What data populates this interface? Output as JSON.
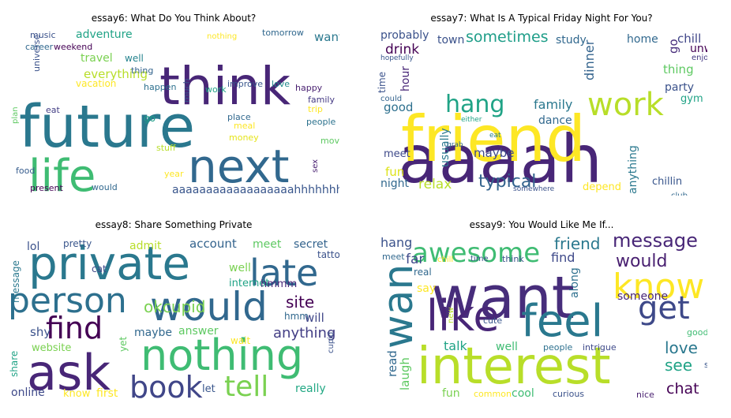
{
  "panels": [
    {
      "title": "essay6: What Do You Think About?",
      "words": [
        {
          "t": "future",
          "c": "#2a788e"
        },
        {
          "t": "think",
          "c": "#482677"
        },
        {
          "t": "next",
          "c": "#31688e"
        },
        {
          "t": "life",
          "c": "#3fbc73"
        },
        {
          "t": "aaaaaaaaaaaaaaaaaahhhhhhhhh",
          "c": "#39568c"
        },
        {
          "t": "everything",
          "c": "#b8de29"
        },
        {
          "t": "travel",
          "c": "#7ad151"
        },
        {
          "t": "adventure",
          "c": "#20a386"
        },
        {
          "t": "want",
          "c": "#2a788e"
        },
        {
          "t": "music",
          "c": "#3b528b"
        },
        {
          "t": "career",
          "c": "#31688e"
        },
        {
          "t": "weekend",
          "c": "#440154"
        },
        {
          "t": "universe",
          "c": "#3b528b"
        },
        {
          "t": "well",
          "c": "#25838e"
        },
        {
          "t": "vacation",
          "c": "#fde725"
        },
        {
          "t": "thing",
          "c": "#33638d"
        },
        {
          "t": "happen",
          "c": "#2d708e"
        },
        {
          "t": "much",
          "c": "#3b528b"
        },
        {
          "t": "work",
          "c": "#20a386"
        },
        {
          "t": "improve",
          "c": "#39568c"
        },
        {
          "t": "love",
          "c": "#238a8d"
        },
        {
          "t": "happy",
          "c": "#481f70"
        },
        {
          "t": "family",
          "c": "#443983"
        },
        {
          "t": "trip",
          "c": "#fde725"
        },
        {
          "t": "people",
          "c": "#2c728e"
        },
        {
          "t": "eat",
          "c": "#433e85"
        },
        {
          "t": "plan",
          "c": "#5ec962"
        },
        {
          "t": "go",
          "c": "#1f9e89"
        },
        {
          "t": "place",
          "c": "#31688e"
        },
        {
          "t": "meal",
          "c": "#fde725"
        },
        {
          "t": "money",
          "c": "#e5e419"
        },
        {
          "t": "move",
          "c": "#5ec962"
        },
        {
          "t": "stuff",
          "c": "#b8de29"
        },
        {
          "t": "year",
          "c": "#fde725"
        },
        {
          "t": "food",
          "c": "#365c8d"
        },
        {
          "t": "present",
          "c": "#440154"
        },
        {
          "t": "would",
          "c": "#31688e"
        },
        {
          "t": "sex",
          "c": "#481f70"
        },
        {
          "t": "nothing",
          "c": "#fde725"
        },
        {
          "t": "tomorrow",
          "c": "#31688e"
        }
      ]
    },
    {
      "title": "essay7: What Is A Typical Friday Night For You?",
      "words": [
        {
          "t": "aaaah",
          "c": "#482677"
        },
        {
          "t": "friend",
          "c": "#fde725"
        },
        {
          "t": "work",
          "c": "#b8de29"
        },
        {
          "t": "hang",
          "c": "#20a386"
        },
        {
          "t": "sometimes",
          "c": "#1f9e89"
        },
        {
          "t": "family",
          "c": "#2a788e"
        },
        {
          "t": "typical",
          "c": "#33638d"
        },
        {
          "t": "relax",
          "c": "#b8de29"
        },
        {
          "t": "probably",
          "c": "#3b528b"
        },
        {
          "t": "drink",
          "c": "#440154"
        },
        {
          "t": "good",
          "c": "#2d708e"
        },
        {
          "t": "town",
          "c": "#3b528b"
        },
        {
          "t": "study",
          "c": "#31688e"
        },
        {
          "t": "home",
          "c": "#31688e"
        },
        {
          "t": "chill",
          "c": "#404688"
        },
        {
          "t": "go",
          "c": "#472d7b"
        },
        {
          "t": "unwind",
          "c": "#440154"
        },
        {
          "t": "enjoy",
          "c": "#443983"
        },
        {
          "t": "thing",
          "c": "#5ec962"
        },
        {
          "t": "party",
          "c": "#3b528b"
        },
        {
          "t": "gym",
          "c": "#20a386"
        },
        {
          "t": "dinner",
          "c": "#33638d"
        },
        {
          "t": "hour",
          "c": "#482677"
        },
        {
          "t": "time",
          "c": "#3b528b"
        },
        {
          "t": "hopefully",
          "c": "#39568c"
        },
        {
          "t": "could",
          "c": "#33638d"
        },
        {
          "t": "dance",
          "c": "#31688e"
        },
        {
          "t": "maybe",
          "c": "#3e4989"
        },
        {
          "t": "meet",
          "c": "#3e4989"
        },
        {
          "t": "usually",
          "c": "#2a788e"
        },
        {
          "t": "either",
          "c": "#20a386"
        },
        {
          "t": "eat",
          "c": "#277f8e"
        },
        {
          "t": "grab",
          "c": "#31688e"
        },
        {
          "t": "fun",
          "c": "#dde318"
        },
        {
          "t": "night",
          "c": "#31688e"
        },
        {
          "t": "anything",
          "c": "#2a788e"
        },
        {
          "t": "depend",
          "c": "#fde725"
        },
        {
          "t": "chillin",
          "c": "#39568c"
        },
        {
          "t": "club",
          "c": "#31688e"
        },
        {
          "t": "somewhere",
          "c": "#3b528b"
        }
      ]
    },
    {
      "title": "essay8: Share Something Private",
      "words": [
        {
          "t": "private",
          "c": "#2a788e"
        },
        {
          "t": "nothing",
          "c": "#3fbc73"
        },
        {
          "t": "ask",
          "c": "#482677"
        },
        {
          "t": "would",
          "c": "#31688e"
        },
        {
          "t": "person",
          "c": "#2d708e"
        },
        {
          "t": "late",
          "c": "#31688e"
        },
        {
          "t": "find",
          "c": "#440154"
        },
        {
          "t": "book",
          "c": "#404688"
        },
        {
          "t": "tell",
          "c": "#7ad151"
        },
        {
          "t": "okcupid",
          "c": "#7ad151"
        },
        {
          "t": "site",
          "c": "#440154"
        },
        {
          "t": "anything",
          "c": "#433e85"
        },
        {
          "t": "lol",
          "c": "#3b528b"
        },
        {
          "t": "pretty",
          "c": "#39568c"
        },
        {
          "t": "admit",
          "c": "#b8de29"
        },
        {
          "t": "account",
          "c": "#33638d"
        },
        {
          "t": "meet",
          "c": "#5ec962"
        },
        {
          "t": "secret",
          "c": "#33638d"
        },
        {
          "t": "tattoo",
          "c": "#3b528b"
        },
        {
          "t": "message",
          "c": "#2a788e"
        },
        {
          "t": "cat",
          "c": "#3e4989"
        },
        {
          "t": "well",
          "c": "#7ad151"
        },
        {
          "t": "internet",
          "c": "#20a386"
        },
        {
          "t": "hmmm",
          "c": "#482677"
        },
        {
          "t": "hmm",
          "c": "#31688e"
        },
        {
          "t": "will",
          "c": "#404688"
        },
        {
          "t": "shy",
          "c": "#3b528b"
        },
        {
          "t": "website",
          "c": "#7ad151"
        },
        {
          "t": "maybe",
          "c": "#31688e"
        },
        {
          "t": "answer",
          "c": "#5ec962"
        },
        {
          "t": "wait",
          "c": "#fde725"
        },
        {
          "t": "yet",
          "c": "#5ec962"
        },
        {
          "t": "cupid",
          "c": "#3b528b"
        },
        {
          "t": "share",
          "c": "#20a386"
        },
        {
          "t": "online",
          "c": "#3e4989"
        },
        {
          "t": "know",
          "c": "#fde725"
        },
        {
          "t": "first",
          "c": "#fde725"
        },
        {
          "t": "let",
          "c": "#39568c"
        },
        {
          "t": "really",
          "c": "#22a884"
        }
      ]
    },
    {
      "title": "essay9: You Would Like Me If...",
      "words": [
        {
          "t": "want",
          "c": "#472d7b"
        },
        {
          "t": "interest",
          "c": "#b8de29"
        },
        {
          "t": "feel",
          "c": "#2a788e"
        },
        {
          "t": "like",
          "c": "#482677"
        },
        {
          "t": "wan",
          "c": "#2a788e"
        },
        {
          "t": "awesome",
          "c": "#3fbc73"
        },
        {
          "t": "know",
          "c": "#fde725"
        },
        {
          "t": "get",
          "c": "#3e4989"
        },
        {
          "t": "message",
          "c": "#482677"
        },
        {
          "t": "friend",
          "c": "#2a788e"
        },
        {
          "t": "would",
          "c": "#481f70"
        },
        {
          "t": "love",
          "c": "#2a788e"
        },
        {
          "t": "see",
          "c": "#20a386"
        },
        {
          "t": "chat",
          "c": "#440154"
        },
        {
          "t": "hang",
          "c": "#3b528b"
        },
        {
          "t": "meet",
          "c": "#31688e"
        },
        {
          "t": "far",
          "c": "#3e4989"
        },
        {
          "t": "real",
          "c": "#31688e"
        },
        {
          "t": "chill",
          "c": "#fde725"
        },
        {
          "t": "time",
          "c": "#3b528b"
        },
        {
          "t": "think",
          "c": "#3b528b"
        },
        {
          "t": "find",
          "c": "#3e4989"
        },
        {
          "t": "say",
          "c": "#fde725"
        },
        {
          "t": "along",
          "c": "#2d708e"
        },
        {
          "t": "someone",
          "c": "#482677"
        },
        {
          "t": "read",
          "c": "#31688e"
        },
        {
          "t": "laugh",
          "c": "#5ec962"
        },
        {
          "t": "new",
          "c": "#b8de29"
        },
        {
          "t": "cute",
          "c": "#39568c"
        },
        {
          "t": "talk",
          "c": "#20a386"
        },
        {
          "t": "well",
          "c": "#3fbc73"
        },
        {
          "t": "people",
          "c": "#2d708e"
        },
        {
          "t": "intrigue",
          "c": "#3e4989"
        },
        {
          "t": "good",
          "c": "#3fbc73"
        },
        {
          "t": "share",
          "c": "#39568c"
        },
        {
          "t": "fun",
          "c": "#7ad151"
        },
        {
          "t": "common",
          "c": "#fde725"
        },
        {
          "t": "cool",
          "c": "#3fbc73"
        },
        {
          "t": "curious",
          "c": "#3b528b"
        },
        {
          "t": "nice",
          "c": "#481f70"
        }
      ]
    }
  ]
}
